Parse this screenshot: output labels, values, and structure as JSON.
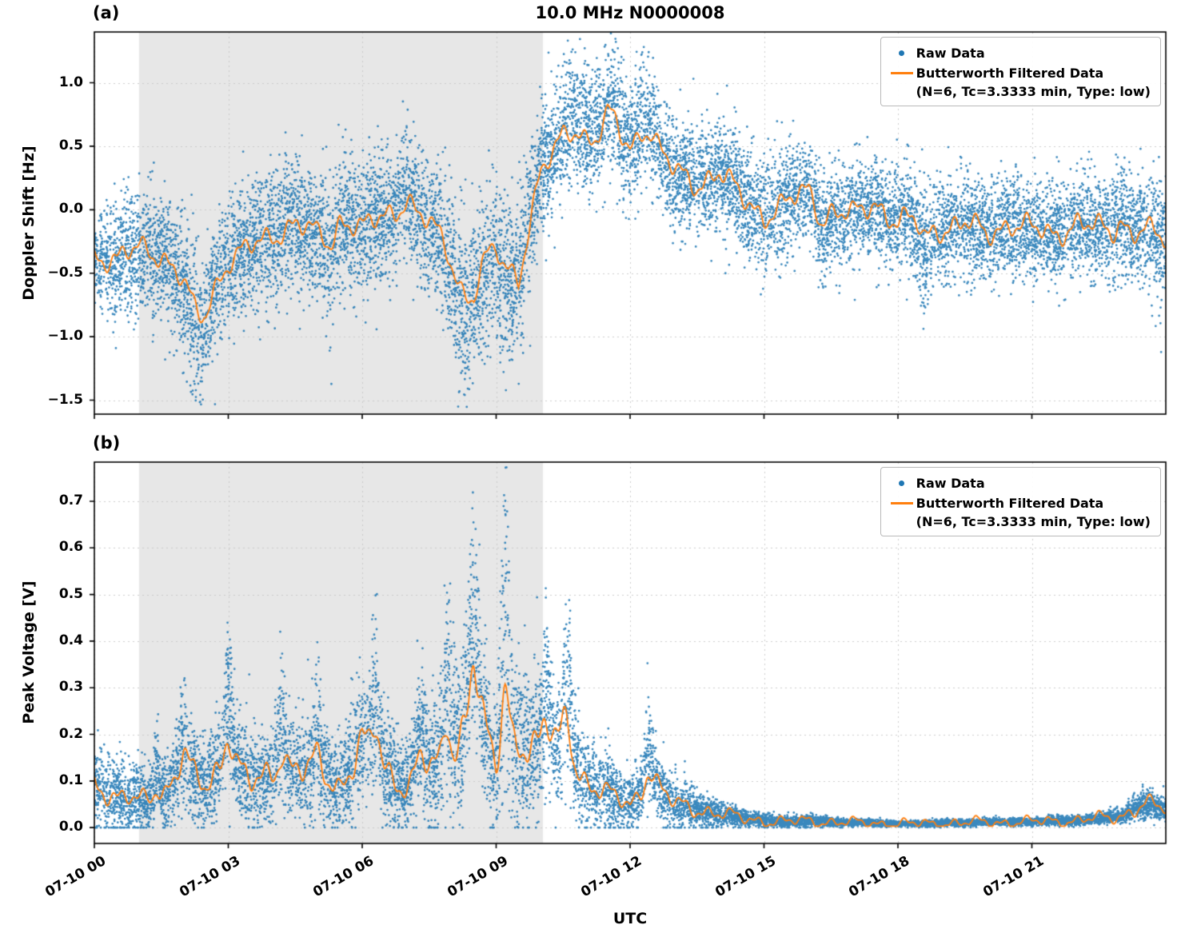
{
  "figure": {
    "title": "10.0 MHz N0000008",
    "xlabel": "UTC",
    "colors": {
      "raw": "#1f77b4",
      "filtered": "#ff7f0e",
      "shade": "#e7e7e7",
      "grid": "#c8c8c8",
      "spine": "#000000"
    },
    "legend": {
      "raw_label": "Raw Data",
      "filtered_label": "Butterworth Filtered Data",
      "filtered_sublabel": "(N=6, Tc=3.3333 min, Type: low)"
    }
  },
  "chart_data": [
    {
      "type": "scatter+line",
      "panel_label": "(a)",
      "ylabel": "Doppler Shift [Hz]",
      "ylim": [
        -1.61,
        1.4
      ],
      "yticks": [
        1.0,
        0.5,
        0.0,
        -0.5,
        -1.0,
        -1.5
      ],
      "ytick_labels": [
        "1.0",
        "0.5",
        "0.0",
        "−0.5",
        "−1.0",
        "−1.5"
      ],
      "x_hours": [
        0,
        24
      ],
      "xtick_hours": [
        0,
        3,
        6,
        9,
        12,
        15,
        18,
        21
      ],
      "xtick_labels": [
        "07-10 00",
        "07-10 03",
        "07-10 06",
        "07-10 09",
        "07-10 12",
        "07-10 15",
        "07-10 18",
        "07-10 21"
      ],
      "shaded_region_hours": [
        1.0,
        10.05
      ],
      "series": [
        {
          "name": "Raw Data",
          "type": "scatter",
          "color": "#1f77b4"
        },
        {
          "name": "Butterworth Filtered Data (N=6, Tc=3.3333 min, Type: low)",
          "type": "line",
          "color": "#ff7f0e"
        }
      ],
      "trend_t_step": 0.5,
      "trend": [
        -0.35,
        -0.4,
        -0.3,
        -0.35,
        -0.55,
        -0.75,
        -0.4,
        -0.3,
        -0.2,
        -0.1,
        -0.2,
        -0.05,
        -0.15,
        -0.05,
        0.0,
        -0.1,
        -0.35,
        -0.55,
        -0.15,
        -0.5,
        0.3,
        0.5,
        0.45,
        0.6,
        0.45,
        0.55,
        0.3,
        0.2,
        0.3,
        0.1,
        -0.05,
        0.05,
        0.15,
        0.0,
        -0.05,
        0.05,
        -0.1,
        -0.05,
        -0.15,
        -0.1,
        -0.2,
        -0.1,
        -0.15,
        -0.2,
        -0.1,
        -0.15,
        -0.2,
        -0.15,
        -0.25
      ],
      "spread": [
        0.22,
        0.22,
        0.25,
        0.25,
        0.27,
        0.28,
        0.27,
        0.26,
        0.26,
        0.26,
        0.26,
        0.26,
        0.26,
        0.26,
        0.27,
        0.27,
        0.28,
        0.3,
        0.28,
        0.3,
        0.25,
        0.22,
        0.22,
        0.22,
        0.22,
        0.22,
        0.22,
        0.2,
        0.2,
        0.22,
        0.25,
        0.22,
        0.2,
        0.2,
        0.2,
        0.2,
        0.2,
        0.2,
        0.2,
        0.2,
        0.2,
        0.2,
        0.2,
        0.2,
        0.2,
        0.2,
        0.2,
        0.22,
        0.24
      ],
      "spikes": [
        {
          "t": 2.3,
          "amp": -0.55,
          "w": 0.15
        },
        {
          "t": 5.3,
          "amp": -0.5,
          "w": 0.12
        },
        {
          "t": 7.0,
          "amp": 0.35,
          "w": 0.12
        },
        {
          "t": 8.3,
          "amp": -0.65,
          "w": 0.2
        },
        {
          "t": 9.1,
          "amp": -0.6,
          "w": 0.22
        },
        {
          "t": 10.8,
          "amp": 0.55,
          "w": 0.25
        },
        {
          "t": 11.6,
          "amp": 0.5,
          "w": 0.18
        },
        {
          "t": 12.3,
          "amp": 0.45,
          "w": 0.15
        },
        {
          "t": 16.3,
          "amp": -0.45,
          "w": 0.1
        },
        {
          "t": 18.6,
          "amp": -0.55,
          "w": 0.12
        },
        {
          "t": 23.0,
          "amp": 0.35,
          "w": 0.1
        }
      ],
      "wiggle_amp": 0.12,
      "wiggle_rel": 0.0,
      "line_spike_factor": 0.3,
      "clamp_min": null,
      "n_points": 13000
    },
    {
      "type": "scatter+line",
      "panel_label": "(b)",
      "ylabel": "Peak Voltage [V]",
      "ylim": [
        -0.034,
        0.784
      ],
      "yticks": [
        0.7,
        0.6,
        0.5,
        0.4,
        0.3,
        0.2,
        0.1,
        0.0
      ],
      "ytick_labels": [
        "0.7",
        "0.6",
        "0.5",
        "0.4",
        "0.3",
        "0.2",
        "0.1",
        "0.0"
      ],
      "x_hours": [
        0,
        24
      ],
      "xtick_hours": [
        0,
        3,
        6,
        9,
        12,
        15,
        18,
        21
      ],
      "xtick_labels": [
        "07-10 00",
        "07-10 03",
        "07-10 06",
        "07-10 09",
        "07-10 12",
        "07-10 15",
        "07-10 18",
        "07-10 21"
      ],
      "shaded_region_hours": [
        1.0,
        10.05
      ],
      "series": [
        {
          "name": "Raw Data",
          "type": "scatter",
          "color": "#1f77b4"
        },
        {
          "name": "Butterworth Filtered Data (N=6, Tc=3.3333 min, Type: low)",
          "type": "line",
          "color": "#ff7f0e"
        }
      ],
      "trend_t_step": 0.5,
      "trend": [
        0.1,
        0.06,
        0.06,
        0.07,
        0.12,
        0.09,
        0.16,
        0.09,
        0.12,
        0.13,
        0.11,
        0.09,
        0.18,
        0.12,
        0.09,
        0.12,
        0.14,
        0.28,
        0.12,
        0.2,
        0.16,
        0.18,
        0.1,
        0.07,
        0.05,
        0.1,
        0.05,
        0.04,
        0.03,
        0.02,
        0.015,
        0.012,
        0.015,
        0.012,
        0.01,
        0.01,
        0.008,
        0.008,
        0.01,
        0.01,
        0.012,
        0.012,
        0.012,
        0.015,
        0.015,
        0.02,
        0.025,
        0.05,
        0.04
      ],
      "spread": [
        0.05,
        0.04,
        0.04,
        0.04,
        0.05,
        0.05,
        0.06,
        0.05,
        0.05,
        0.06,
        0.06,
        0.05,
        0.07,
        0.06,
        0.05,
        0.07,
        0.09,
        0.1,
        0.08,
        0.1,
        0.07,
        0.07,
        0.05,
        0.04,
        0.03,
        0.04,
        0.03,
        0.02,
        0.015,
        0.01,
        0.008,
        0.006,
        0.006,
        0.005,
        0.004,
        0.004,
        0.003,
        0.003,
        0.004,
        0.004,
        0.004,
        0.004,
        0.004,
        0.005,
        0.005,
        0.006,
        0.008,
        0.015,
        0.012
      ],
      "spikes": [
        {
          "t": 1.4,
          "amp": 0.1,
          "w": 0.06
        },
        {
          "t": 2.0,
          "amp": 0.15,
          "w": 0.1
        },
        {
          "t": 3.0,
          "amp": 0.22,
          "w": 0.08
        },
        {
          "t": 4.2,
          "amp": 0.18,
          "w": 0.08
        },
        {
          "t": 5.0,
          "amp": 0.15,
          "w": 0.1
        },
        {
          "t": 6.3,
          "amp": 0.28,
          "w": 0.08
        },
        {
          "t": 7.3,
          "amp": 0.2,
          "w": 0.1
        },
        {
          "t": 7.9,
          "amp": 0.35,
          "w": 0.08
        },
        {
          "t": 8.5,
          "amp": 0.42,
          "w": 0.1
        },
        {
          "t": 9.2,
          "amp": 0.6,
          "w": 0.08
        },
        {
          "t": 10.1,
          "amp": 0.25,
          "w": 0.1
        },
        {
          "t": 10.6,
          "amp": 0.3,
          "w": 0.08
        },
        {
          "t": 12.4,
          "amp": 0.15,
          "w": 0.08
        }
      ],
      "wiggle_amp": 0.012,
      "wiggle_rel": 0.25,
      "line_spike_factor": 0.25,
      "clamp_min": 0.0,
      "n_points": 12000
    }
  ]
}
